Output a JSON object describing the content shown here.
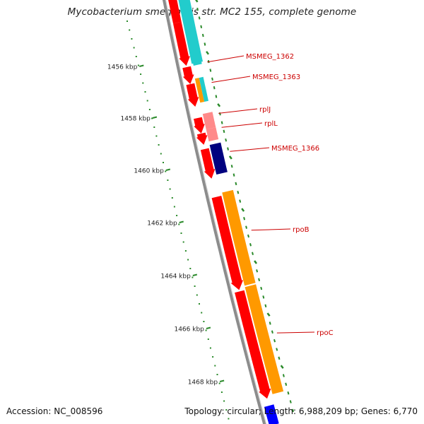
{
  "title": "Mycobacterium smegmatis str. MC2 155, complete genome",
  "footer": {
    "accession": "Accession: NC_008596",
    "info": "Topology: circular; Length: 6,988,209 bp; Genes: 6,770"
  },
  "ruler_labels": [
    "1456 kbp",
    "1458 kbp",
    "1460 kbp",
    "1462 kbp",
    "1464 kbp",
    "1466 kbp",
    "1468 kbp"
  ],
  "colors": {
    "cds": "#ff0000",
    "rrna_light": "#ff8a8a",
    "orange": "#ff9900",
    "cyan": "#22cccc",
    "navy": "#00007f",
    "blue": "#0000ff",
    "backbone": "#8c8c8c",
    "label": "#cc0000",
    "tick": "#2a8a2a"
  },
  "genes": [
    {
      "name": "MSMEG_1362"
    },
    {
      "name": "MSMEG_1363"
    },
    {
      "name": "rplJ"
    },
    {
      "name": "rplL"
    },
    {
      "name": "MSMEG_1366"
    },
    {
      "name": "rpoB"
    },
    {
      "name": "rpoC"
    }
  ]
}
